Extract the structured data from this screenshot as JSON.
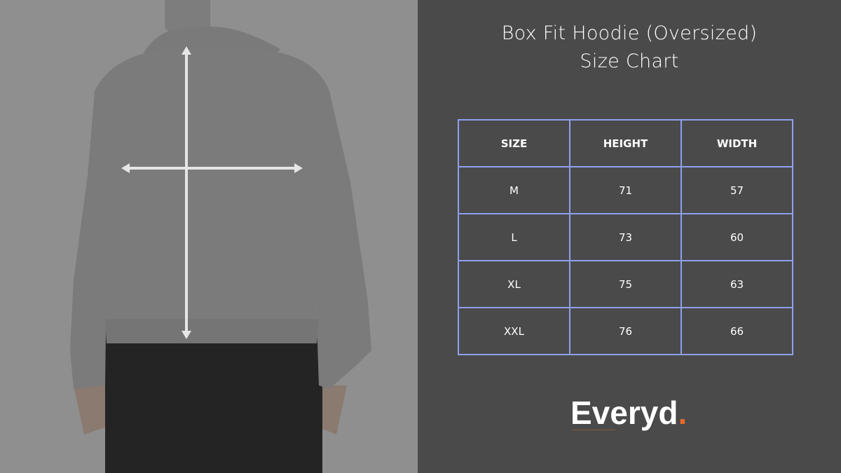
{
  "title_line1": "Box Fit Hoodie (Oversized)",
  "title_line2": "Size Chart",
  "table": {
    "headers": [
      "SIZE",
      "HEIGHT",
      "WIDTH"
    ],
    "rows": [
      [
        "M",
        "71",
        "57"
      ],
      [
        "L",
        "73",
        "60"
      ],
      [
        "XL",
        "75",
        "63"
      ],
      [
        "XXL",
        "76",
        "66"
      ]
    ]
  },
  "brand": {
    "name": "Everyd",
    "dot": ".",
    "accent": "#e8692a"
  },
  "colors": {
    "background": "#4a4a4a",
    "table_border": "#8fa0f0"
  }
}
